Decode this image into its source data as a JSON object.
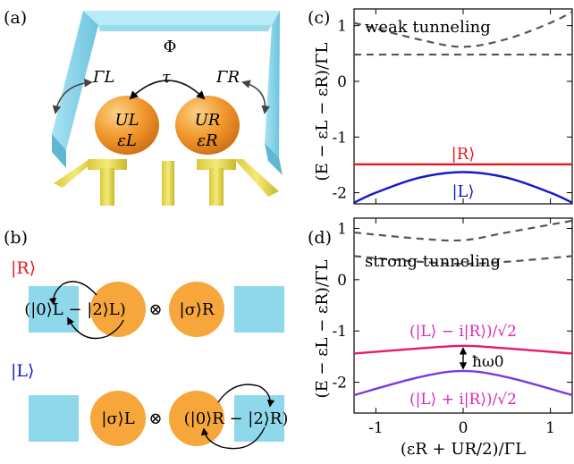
{
  "panel_labels": {
    "a": "(a)",
    "b": "(b)",
    "c": "(c)",
    "d": "(d)"
  },
  "panel_a": {
    "flux": "Φ",
    "gamma_left": "ΓL",
    "gamma_right": "ΓR",
    "tau": "τ",
    "dot_left": {
      "U": "UL",
      "eps": "εL"
    },
    "dot_right": {
      "U": "UR",
      "eps": "εR"
    },
    "colors": {
      "lead": "#8fd3e8",
      "dot": "#f29a2e",
      "gate": "#e6d84a"
    }
  },
  "panel_b": {
    "state_R": "|R⟩",
    "state_L": "|L⟩",
    "row_R": {
      "superpos": "(|0⟩L − |2⟩L)",
      "tensor": "⊗",
      "other": "|σ⟩R"
    },
    "row_L": {
      "other": "|σ⟩L",
      "tensor": "⊗",
      "superpos": "(|0⟩R − |2⟩R)"
    },
    "colors": {
      "lead": "#8fd8ec",
      "dot": "#f7a63c"
    }
  },
  "panel_c": {
    "title": "weak tunneling",
    "ylabel": "(E − εL − εR)/ΓL",
    "label_R": "|R⟩",
    "label_L": "|L⟩",
    "yticks": [
      "1",
      "0",
      "-1",
      "-2"
    ]
  },
  "panel_d": {
    "title": "strong tunneling",
    "ylabel": "(E − εL − εR)/ΓL",
    "label_upper": "(|L⟩ − i|R⟩)/√2",
    "label_lower": "(|L⟩ + i|R⟩)/√2",
    "gap_label": "ħω0",
    "yticks": [
      "1",
      "0",
      "-1",
      "-2"
    ],
    "xticks": [
      "-1",
      "0",
      "1"
    ],
    "xlabel": "(εR + UR/2)/ΓL"
  },
  "chart_data": [
    {
      "type": "line",
      "title": "weak tunneling",
      "xlabel": "",
      "ylabel": "(E − εL − εR)/ΓL",
      "xlim": [
        -1.25,
        1.25
      ],
      "ylim": [
        -2.2,
        1.3
      ],
      "series": [
        {
          "name": "|R⟩",
          "color": "#e8191e",
          "style": "solid",
          "x": [
            -1.25,
            -0.5,
            0,
            0.5,
            1.25
          ],
          "y": [
            -1.49,
            -1.49,
            -1.49,
            -1.49,
            -1.49
          ]
        },
        {
          "name": "|L⟩",
          "color": "#1518c8",
          "style": "solid",
          "x": [
            -1.25,
            -1.0,
            -0.5,
            0,
            0.5,
            1.0,
            1.25
          ],
          "y": [
            -2.18,
            -2.0,
            -1.73,
            -1.63,
            -1.73,
            -2.0,
            -2.18
          ]
        },
        {
          "color": "#555555",
          "style": "dashed",
          "x": [
            -1.25,
            -0.5,
            0,
            0.5,
            1.25
          ],
          "y": [
            0.48,
            0.48,
            0.48,
            0.48,
            0.48
          ]
        },
        {
          "color": "#555555",
          "style": "dashed",
          "x": [
            -1.25,
            -0.5,
            0,
            0.5,
            1.0,
            1.25
          ],
          "y": [
            1.05,
            0.75,
            0.62,
            0.76,
            1.05,
            1.25
          ]
        }
      ]
    },
    {
      "type": "line",
      "title": "strong tunneling",
      "xlabel": "(εR + UR/2)/ΓL",
      "ylabel": "(E − εL − εR)/ΓL",
      "xlim": [
        -1.25,
        1.25
      ],
      "ylim": [
        -2.6,
        1.2
      ],
      "series": [
        {
          "name": "(|L⟩ − i|R⟩)/√2",
          "color": "#e8196e",
          "style": "solid",
          "x": [
            -1.25,
            -0.5,
            0,
            0.5,
            1.25
          ],
          "y": [
            -1.44,
            -1.34,
            -1.29,
            -1.34,
            -1.44
          ]
        },
        {
          "name": "(|L⟩ + i|R⟩)/√2",
          "color": "#7a3ae0",
          "style": "solid",
          "x": [
            -1.25,
            -0.5,
            0,
            0.5,
            1.25
          ],
          "y": [
            -2.25,
            -1.9,
            -1.78,
            -1.9,
            -2.25
          ]
        },
        {
          "color": "#555555",
          "style": "dashed",
          "x": [
            -1.25,
            -0.5,
            0,
            0.5,
            1.25
          ],
          "y": [
            0.46,
            0.35,
            0.31,
            0.35,
            0.46
          ]
        },
        {
          "color": "#555555",
          "style": "dashed",
          "x": [
            -1.25,
            -0.5,
            0,
            0.5,
            1.25
          ],
          "y": [
            0.92,
            0.8,
            0.77,
            0.92,
            1.15
          ]
        }
      ]
    }
  ]
}
